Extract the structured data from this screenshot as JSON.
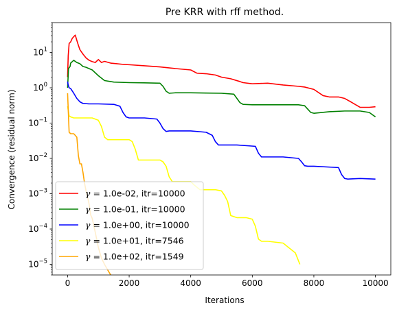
{
  "chart_data": {
    "type": "line",
    "title": "Pre KRR with rff method.",
    "xlabel": "Iterations",
    "ylabel": "Convergence (residual norm)",
    "xlim": [
      -500,
      10500
    ],
    "ylim": [
      5e-06,
      70
    ],
    "yscale": "log",
    "grid": false,
    "legend_position": "lower-left",
    "x_ticks": [
      0,
      2000,
      4000,
      6000,
      8000,
      10000
    ],
    "x_tick_labels": [
      "0",
      "2000",
      "4000",
      "6000",
      "8000",
      "10000"
    ],
    "y_ticks": [
      1e-05,
      0.0001,
      0.001,
      0.01,
      0.1,
      1,
      10
    ],
    "y_tick_labels": [
      {
        "base": "10",
        "exp": "−5"
      },
      {
        "base": "10",
        "exp": "−4"
      },
      {
        "base": "10",
        "exp": "−3"
      },
      {
        "base": "10",
        "exp": "−2"
      },
      {
        "base": "10",
        "exp": "−1"
      },
      {
        "base": "10",
        "exp": "0"
      },
      {
        "base": "10",
        "exp": "1"
      }
    ],
    "series": [
      {
        "name": "γ = 1.0e-02, itr=10000",
        "legend_gamma": "1.0e-02",
        "legend_itr": "itr=10000",
        "color": "#ff0000",
        "x": [
          0,
          20,
          50,
          100,
          150,
          200,
          250,
          300,
          350,
          400,
          500,
          600,
          700,
          800,
          900,
          1000,
          1100,
          1200,
          1400,
          1600,
          1800,
          2000,
          2500,
          3000,
          3500,
          4000,
          4200,
          4500,
          4800,
          5000,
          5300,
          5600,
          5700,
          6000,
          6500,
          7000,
          7500,
          7700,
          8000,
          8300,
          8500,
          8800,
          9000,
          9200,
          9500,
          9800,
          10000
        ],
        "y": [
          2,
          8,
          18,
          20,
          25,
          28,
          31,
          22,
          16,
          12,
          9,
          7,
          6,
          5.5,
          5.2,
          6.3,
          5.2,
          5.6,
          5,
          4.8,
          4.6,
          4.5,
          4.2,
          3.9,
          3.5,
          3.2,
          2.6,
          2.5,
          2.3,
          2,
          1.8,
          1.5,
          1.4,
          1.3,
          1.35,
          1.2,
          1.1,
          1.05,
          0.9,
          0.6,
          0.55,
          0.55,
          0.5,
          0.4,
          0.28,
          0.28,
          0.29
        ]
      },
      {
        "name": "γ = 1.0e-01, itr=10000",
        "legend_gamma": "1.0e-01",
        "legend_itr": "itr=10000",
        "color": "#008000",
        "x": [
          0,
          30,
          80,
          100,
          200,
          300,
          400,
          500,
          600,
          800,
          1000,
          1200,
          1500,
          2000,
          2500,
          3000,
          3100,
          3200,
          3300,
          3500,
          3800,
          4000,
          4500,
          5000,
          5400,
          5500,
          5600,
          5700,
          6000,
          7000,
          7500,
          7700,
          7800,
          7900,
          8000,
          8500,
          9000,
          9500,
          9800,
          10000
        ],
        "y": [
          1.0,
          3.5,
          4.0,
          5.0,
          6.0,
          5.2,
          4.8,
          4.0,
          3.8,
          3.2,
          2.2,
          1.6,
          1.45,
          1.4,
          1.38,
          1.35,
          1.1,
          0.8,
          0.7,
          0.72,
          0.72,
          0.72,
          0.71,
          0.7,
          0.66,
          0.5,
          0.38,
          0.34,
          0.33,
          0.33,
          0.33,
          0.31,
          0.25,
          0.2,
          0.19,
          0.21,
          0.22,
          0.22,
          0.2,
          0.15
        ]
      },
      {
        "name": "γ = 1.0e+00, itr=10000",
        "legend_gamma": "1.0e+00",
        "legend_itr": "itr=10000",
        "color": "#0000ff",
        "x": [
          0,
          20,
          50,
          100,
          200,
          300,
          400,
          500,
          700,
          1000,
          1500,
          1700,
          1800,
          1900,
          2000,
          2500,
          2900,
          3000,
          3100,
          3200,
          3300,
          3500,
          4000,
          4500,
          4700,
          4800,
          4900,
          5000,
          5500,
          6100,
          6200,
          6300,
          6400,
          7000,
          7500,
          7600,
          7700,
          7800,
          8000,
          8800,
          8900,
          9000,
          9100,
          9500,
          10000
        ],
        "y": [
          1.5,
          1.2,
          1.0,
          0.95,
          0.7,
          0.5,
          0.4,
          0.36,
          0.35,
          0.35,
          0.34,
          0.3,
          0.2,
          0.15,
          0.14,
          0.14,
          0.13,
          0.1,
          0.07,
          0.058,
          0.06,
          0.06,
          0.06,
          0.055,
          0.045,
          0.03,
          0.024,
          0.024,
          0.024,
          0.022,
          0.014,
          0.011,
          0.011,
          0.011,
          0.01,
          0.008,
          0.0062,
          0.006,
          0.006,
          0.0055,
          0.0035,
          0.0027,
          0.0026,
          0.0027,
          0.0026
        ]
      },
      {
        "name": "γ = 1.0e+01, itr=7546",
        "legend_gamma": "1.0e+01",
        "legend_itr": "itr=7546",
        "color": "#ffff00",
        "x": [
          0,
          50,
          100,
          200,
          400,
          800,
          1000,
          1100,
          1200,
          1300,
          1500,
          2000,
          2100,
          2200,
          2300,
          2500,
          3000,
          3100,
          3200,
          3300,
          3400,
          3500,
          4000,
          4100,
          4300,
          4500,
          4800,
          5000,
          5100,
          5200,
          5300,
          5500,
          5800,
          6000,
          6100,
          6200,
          6300,
          6500,
          7000,
          7400,
          7546
        ],
        "y": [
          0.3,
          0.16,
          0.15,
          0.14,
          0.14,
          0.14,
          0.12,
          0.08,
          0.04,
          0.034,
          0.034,
          0.034,
          0.03,
          0.018,
          0.009,
          0.009,
          0.009,
          0.008,
          0.006,
          0.003,
          0.0022,
          0.0022,
          0.0022,
          0.0018,
          0.0013,
          0.0013,
          0.0013,
          0.0012,
          0.0009,
          0.0006,
          0.00024,
          0.00021,
          0.00021,
          0.00019,
          0.00012,
          5.2e-05,
          4.5e-05,
          4.5e-05,
          4e-05,
          2.1e-05,
          1e-05
        ]
      },
      {
        "name": "γ = 1.0e+02, itr=1549",
        "legend_gamma": "1.0e+02",
        "legend_itr": "itr=1549",
        "color": "#ffa500",
        "x": [
          0,
          20,
          50,
          100,
          150,
          200,
          300,
          350,
          400,
          450,
          500,
          550,
          600,
          650,
          700,
          750,
          800,
          900,
          1000,
          1100,
          1200,
          1300,
          1400,
          1549
        ],
        "y": [
          0.7,
          0.25,
          0.055,
          0.05,
          0.05,
          0.05,
          0.04,
          0.012,
          0.007,
          0.007,
          0.004,
          0.002,
          0.0012,
          0.0008,
          0.0005,
          0.00025,
          0.0002,
          8e-05,
          3e-05,
          1.5e-05,
          1e-05,
          7e-06,
          5e-06,
          4e-06
        ]
      }
    ]
  }
}
